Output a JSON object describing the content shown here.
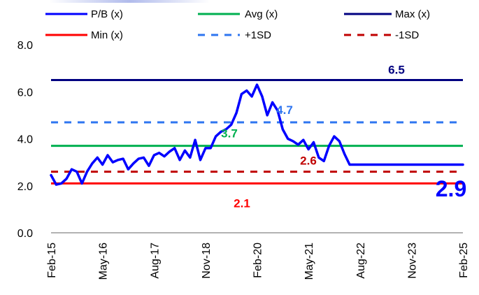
{
  "chart_data": {
    "type": "line",
    "title": "",
    "xlabel": "",
    "ylabel": "",
    "ylim": [
      0,
      8
    ],
    "yticks": [
      "0.0",
      "2.0",
      "4.0",
      "6.0",
      "8.0"
    ],
    "xticks": [
      "Feb-15",
      "May-16",
      "Aug-17",
      "Nov-18",
      "Feb-20",
      "May-21",
      "Aug-22",
      "Nov-23",
      "Feb-25"
    ],
    "legend": {
      "placement": "top",
      "entries": [
        "P/B (x)",
        "Avg (x)",
        "Max (x)",
        "Min (x)",
        "+1SD",
        "-1SD"
      ]
    },
    "reference_lines": {
      "avg": {
        "name": "Avg (x)",
        "value": 3.7,
        "label": "3.7",
        "color": "#00b050",
        "style": "solid"
      },
      "max": {
        "name": "Max (x)",
        "value": 6.5,
        "label": "6.5",
        "color": "#000080",
        "style": "solid"
      },
      "min": {
        "name": "Min (x)",
        "value": 2.1,
        "label": "2.1",
        "color": "#ff0000",
        "style": "solid"
      },
      "plus1sd": {
        "name": "+1SD",
        "value": 4.7,
        "label": "4.7",
        "color": "#2e75f0",
        "style": "dashed"
      },
      "minus1sd": {
        "name": "-1SD",
        "value": 2.6,
        "label": "2.6",
        "color": "#c00000",
        "style": "dashed"
      }
    },
    "series": [
      {
        "name": "P/B (x)",
        "color": "#0000ff",
        "last_label": "2.9",
        "x": [
          0,
          0.1,
          0.2,
          0.3,
          0.4,
          0.5,
          0.6,
          0.7,
          0.8,
          0.9,
          1.0,
          1.1,
          1.2,
          1.3,
          1.4,
          1.5,
          1.6,
          1.7,
          1.8,
          1.9,
          2.0,
          2.1,
          2.2,
          2.3,
          2.4,
          2.5,
          2.6,
          2.7,
          2.8,
          2.9,
          3.0,
          3.1,
          3.2,
          3.3,
          3.4,
          3.5,
          3.6,
          3.7,
          3.8,
          3.9,
          4.0,
          4.1,
          4.2,
          4.3,
          4.4,
          4.5,
          4.6,
          4.7,
          4.8,
          4.9,
          5.0,
          5.1,
          5.2,
          5.3,
          5.4,
          5.5,
          5.6,
          5.7,
          5.8,
          5.9,
          6.0,
          6.1,
          6.2,
          6.3,
          6.4,
          6.5,
          6.6,
          6.7,
          6.8,
          6.9,
          7.0,
          7.1,
          7.2,
          7.3,
          7.4,
          7.5,
          7.6,
          7.7,
          7.8,
          7.9,
          8.0
        ],
        "values": [
          2.45,
          2.05,
          2.1,
          2.3,
          2.7,
          2.6,
          2.1,
          2.6,
          2.95,
          3.2,
          2.9,
          3.3,
          3.0,
          3.1,
          3.15,
          2.7,
          2.95,
          3.15,
          3.2,
          2.85,
          3.3,
          3.4,
          3.25,
          3.45,
          3.6,
          3.1,
          3.5,
          3.2,
          3.95,
          3.1,
          3.6,
          3.6,
          4.1,
          4.3,
          4.4,
          4.6,
          5.1,
          5.9,
          6.05,
          5.8,
          6.3,
          5.8,
          5.0,
          5.55,
          5.2,
          4.4,
          4.0,
          3.9,
          3.75,
          3.95,
          3.55,
          3.85,
          3.2,
          3.05,
          3.7,
          4.1,
          3.9,
          3.35,
          2.9,
          2.9,
          2.9,
          2.9,
          2.9,
          2.9,
          2.9,
          2.9,
          2.9,
          2.9,
          2.9,
          2.9,
          2.9,
          2.9,
          2.9,
          2.9,
          2.9,
          2.9,
          2.9,
          2.9,
          2.9,
          2.9,
          2.9
        ]
      }
    ]
  }
}
